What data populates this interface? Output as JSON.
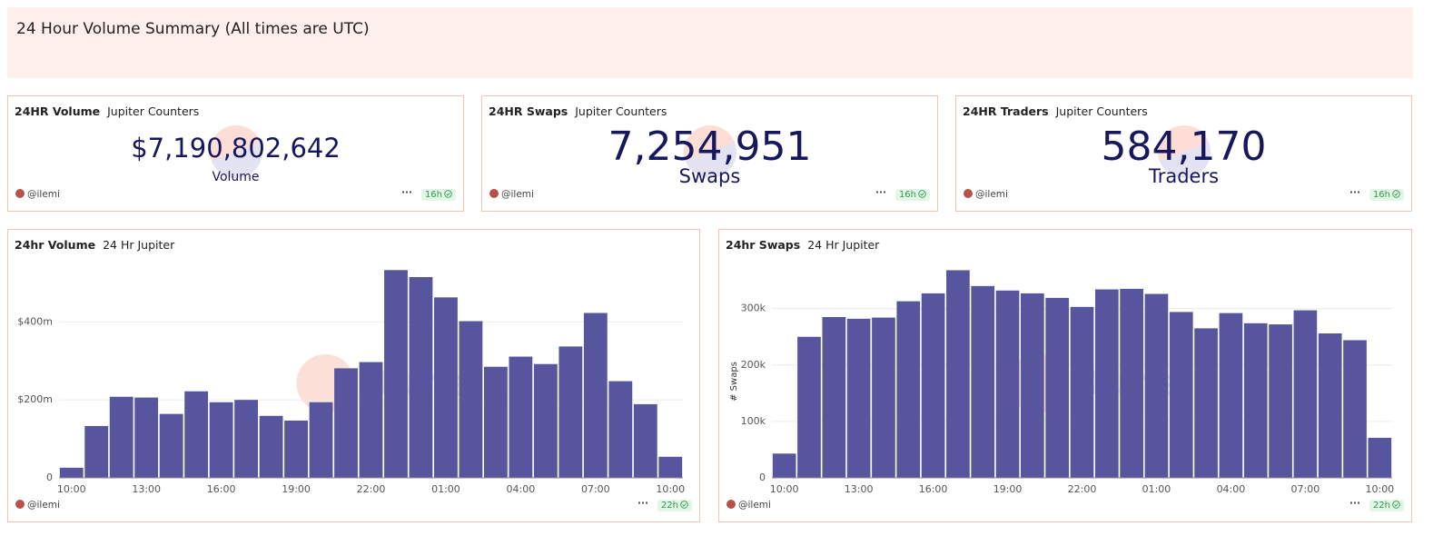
{
  "header": {
    "title": "24 Hour Volume Summary (All times are UTC)"
  },
  "counters": [
    {
      "title": "24HR Volume",
      "subtitle": "Jupiter Counters",
      "value": "$7,190,802,642",
      "label": "Volume",
      "author": "@ilemi",
      "age": "16h"
    },
    {
      "title": "24HR Swaps",
      "subtitle": "Jupiter Counters",
      "value": "7,254,951",
      "label": "Swaps",
      "author": "@ilemi",
      "age": "16h"
    },
    {
      "title": "24HR Traders",
      "subtitle": "Jupiter Counters",
      "value": "584,170",
      "label": "Traders",
      "author": "@ilemi",
      "age": "16h"
    }
  ],
  "chart_data": [
    {
      "type": "bar",
      "title": "24hr Volume",
      "subtitle": "24 Hr Jupiter",
      "author": "@ilemi",
      "age": "22h",
      "watermark": "Dune",
      "categories": [
        "10:00",
        null,
        null,
        "13:00",
        null,
        null,
        "16:00",
        null,
        null,
        "19:00",
        null,
        null,
        "22:00",
        null,
        null,
        "01:00",
        null,
        null,
        "04:00",
        null,
        null,
        "07:00",
        null,
        null,
        "10:00"
      ],
      "values": [
        26000000,
        133000000,
        208000000,
        206000000,
        164000000,
        222000000,
        194000000,
        200000000,
        159000000,
        147000000,
        194000000,
        281000000,
        297000000,
        533000000,
        515000000,
        463000000,
        402000000,
        285000000,
        311000000,
        292000000,
        337000000,
        423000000,
        248000000,
        189000000,
        54000000
      ],
      "color": "#56559e",
      "ylim": [
        0,
        550000000
      ],
      "yticks": [
        0,
        {
          "value": 200000000,
          "label": "$200m"
        },
        {
          "value": 400000000,
          "label": "$400m"
        }
      ],
      "grid": true
    },
    {
      "type": "bar",
      "title": "24hr Swaps",
      "subtitle": "24 Hr Jupiter",
      "author": "@ilemi",
      "age": "22h",
      "watermark": "Dune",
      "y_label": "# Swaps",
      "categories": [
        "10:00",
        null,
        null,
        "13:00",
        null,
        null,
        "16:00",
        null,
        null,
        "19:00",
        null,
        null,
        "22:00",
        null,
        null,
        "01:00",
        null,
        null,
        "04:00",
        null,
        null,
        "07:00",
        null,
        null,
        "10:00"
      ],
      "values": [
        43000,
        250000,
        285000,
        282000,
        284000,
        313000,
        327000,
        368000,
        340000,
        332000,
        327000,
        319000,
        303000,
        334000,
        335000,
        326000,
        294000,
        265000,
        292000,
        274000,
        272000,
        297000,
        256000,
        244000,
        71000
      ],
      "color": "#56559e",
      "ylim": [
        0,
        380000
      ],
      "yticks": [
        0,
        {
          "value": 100000,
          "label": "100k"
        },
        {
          "value": 200000,
          "label": "200k"
        },
        {
          "value": 300000,
          "label": "300k"
        }
      ],
      "grid": true
    }
  ]
}
